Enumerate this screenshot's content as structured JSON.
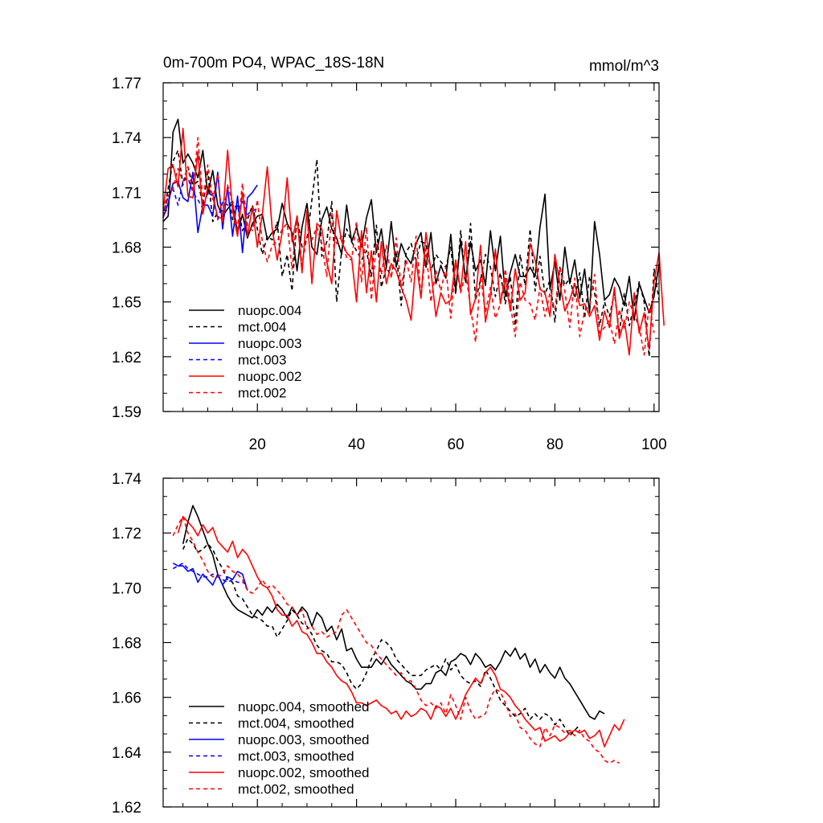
{
  "chart_data": [
    {
      "type": "line",
      "title": "0m-700m PO4, WPAC_18S-18N",
      "units": "mmol/m^3",
      "xlabel": "",
      "ylabel": "",
      "xlim": [
        1,
        101
      ],
      "ylim": [
        1.59,
        1.77
      ],
      "xticks": [
        20,
        40,
        60,
        80,
        100
      ],
      "yticks": [
        1.59,
        1.62,
        1.65,
        1.68,
        1.71,
        1.74,
        1.77
      ],
      "ytick_labels": [
        "1.59",
        "1.62",
        "1.65",
        "1.68",
        "1.71",
        "1.74",
        "1.77"
      ],
      "xtick_labels": [
        "20",
        "40",
        "60",
        "80",
        "100"
      ],
      "legend_position": "bottom-left",
      "series": [
        {
          "name": "nuopc.004",
          "color": "#000000",
          "dash": "solid",
          "x_start": 1,
          "values": [
            1.694,
            1.697,
            1.743,
            1.75,
            1.726,
            1.731,
            1.726,
            1.718,
            1.733,
            1.709,
            1.722,
            1.703,
            1.697,
            1.701,
            1.704,
            1.688,
            1.698,
            1.685,
            1.693,
            1.697,
            1.698,
            1.684,
            1.688,
            1.69,
            1.704,
            1.693,
            1.688,
            1.667,
            1.691,
            1.704,
            1.68,
            1.676,
            1.695,
            1.702,
            1.69,
            1.685,
            1.676,
            1.703,
            1.683,
            1.691,
            1.68,
            1.696,
            1.706,
            1.677,
            1.69,
            1.669,
            1.694,
            1.669,
            1.682,
            1.675,
            1.671,
            1.682,
            1.688,
            1.669,
            1.688,
            1.66,
            1.67,
            1.663,
            1.687,
            1.656,
            1.684,
            1.662,
            1.683,
            1.667,
            1.673,
            1.659,
            1.689,
            1.667,
            1.686,
            1.653,
            1.666,
            1.676,
            1.664,
            1.664,
            1.669,
            1.664,
            1.691,
            1.709,
            1.657,
            1.672,
            1.651,
            1.68,
            1.66,
            1.673,
            1.652,
            1.668,
            1.644,
            1.694,
            1.676,
            1.651,
            1.654,
            1.663,
            1.658,
            1.648,
            1.664,
            1.64,
            1.66,
            1.652,
            1.644,
            1.653,
            1.671
          ]
        },
        {
          "name": "mct.004",
          "color": "#000000",
          "dash": "dashed",
          "x_start": 1,
          "values": [
            1.696,
            1.712,
            1.727,
            1.733,
            1.714,
            1.724,
            1.714,
            1.716,
            1.703,
            1.721,
            1.694,
            1.699,
            1.7,
            1.711,
            1.695,
            1.703,
            1.689,
            1.695,
            1.703,
            1.69,
            1.676,
            1.686,
            1.684,
            1.694,
            1.664,
            1.676,
            1.656,
            1.697,
            1.68,
            1.684,
            1.706,
            1.728,
            1.675,
            1.683,
            1.705,
            1.65,
            1.678,
            1.69,
            1.683,
            1.678,
            1.673,
            1.678,
            1.664,
            1.692,
            1.658,
            1.669,
            1.664,
            1.678,
            1.648,
            1.677,
            1.682,
            1.673,
            1.683,
            1.682,
            1.667,
            1.676,
            1.672,
            1.669,
            1.68,
            1.654,
            1.689,
            1.66,
            1.693,
            1.651,
            1.662,
            1.676,
            1.669,
            1.653,
            1.666,
            1.649,
            1.664,
            1.637,
            1.676,
            1.659,
            1.69,
            1.656,
            1.675,
            1.654,
            1.662,
            1.639,
            1.669,
            1.659,
            1.663,
            1.652,
            1.666,
            1.641,
            1.664,
            1.655,
            1.637,
            1.65,
            1.642,
            1.655,
            1.633,
            1.655,
            1.637,
            1.648,
            1.661,
            1.65,
            1.62,
            1.668,
            1.651
          ]
        },
        {
          "name": "nuopc.003",
          "color": "#0000ff",
          "dash": "solid",
          "x_start": 1,
          "values": [
            1.696,
            1.704,
            1.715,
            1.716,
            1.707,
            1.705,
            1.721,
            1.688,
            1.703,
            1.703,
            1.697,
            1.721,
            1.69,
            1.713,
            1.686,
            1.708,
            1.677,
            1.707,
            1.71,
            1.714
          ]
        },
        {
          "name": "mct.003",
          "color": "#0000ff",
          "dash": "dashed",
          "x_start": 1,
          "values": [
            1.697,
            1.708,
            1.712,
            1.703,
            1.716,
            1.718,
            1.71,
            1.706,
            1.701,
            1.71,
            1.708,
            1.695,
            1.705,
            1.703,
            1.705,
            1.7,
            1.705,
            1.698,
            1.7,
            1.701
          ]
        },
        {
          "name": "nuopc.002",
          "color": "#ff0000",
          "dash": "solid",
          "x_start": 1,
          "values": [
            1.7,
            1.723,
            1.725,
            1.713,
            1.745,
            1.708,
            1.707,
            1.732,
            1.698,
            1.713,
            1.709,
            1.696,
            1.696,
            1.733,
            1.7,
            1.686,
            1.71,
            1.686,
            1.702,
            1.68,
            1.698,
            1.724,
            1.69,
            1.673,
            1.688,
            1.718,
            1.683,
            1.697,
            1.666,
            1.7,
            1.66,
            1.693,
            1.69,
            1.672,
            1.66,
            1.7,
            1.683,
            1.677,
            1.674,
            1.65,
            1.689,
            1.655,
            1.678,
            1.65,
            1.683,
            1.66,
            1.671,
            1.667,
            1.658,
            1.651,
            1.64,
            1.673,
            1.652,
            1.688,
            1.667,
            1.642,
            1.655,
            1.649,
            1.651,
            1.673,
            1.656,
            1.683,
            1.643,
            1.652,
            1.681,
            1.639,
            1.653,
            1.679,
            1.649,
            1.663,
            1.645,
            1.668,
            1.651,
            1.655,
            1.682,
            1.673,
            1.657,
            1.655,
            1.642,
            1.676,
            1.66,
            1.645,
            1.651,
            1.66,
            1.648,
            1.649,
            1.642,
            1.648,
            1.629,
            1.645,
            1.636,
            1.658,
            1.63,
            1.64,
            1.621,
            1.655,
            1.633,
            1.644,
            1.624,
            1.661,
            1.677,
            1.637
          ]
        },
        {
          "name": "mct.002",
          "color": "#ff0000",
          "dash": "dashed",
          "x_start": 1,
          "values": [
            1.696,
            1.708,
            1.712,
            1.723,
            1.716,
            1.724,
            1.71,
            1.74,
            1.705,
            1.725,
            1.706,
            1.72,
            1.693,
            1.714,
            1.704,
            1.69,
            1.715,
            1.692,
            1.689,
            1.706,
            1.683,
            1.672,
            1.681,
            1.683,
            1.69,
            1.693,
            1.668,
            1.697,
            1.67,
            1.686,
            1.684,
            1.691,
            1.682,
            1.664,
            1.699,
            1.682,
            1.686,
            1.674,
            1.673,
            1.694,
            1.661,
            1.691,
            1.651,
            1.682,
            1.665,
            1.681,
            1.663,
            1.685,
            1.658,
            1.673,
            1.661,
            1.686,
            1.653,
            1.679,
            1.65,
            1.667,
            1.656,
            1.669,
            1.641,
            1.671,
            1.655,
            1.666,
            1.647,
            1.628,
            1.664,
            1.644,
            1.658,
            1.641,
            1.649,
            1.668,
            1.649,
            1.631,
            1.661,
            1.651,
            1.649,
            1.64,
            1.658,
            1.642,
            1.655,
            1.646,
            1.669,
            1.656,
            1.636,
            1.663,
            1.631,
            1.645,
            1.648,
            1.665,
            1.633,
            1.636,
            1.64,
            1.627,
            1.646,
            1.635,
            1.65,
            1.643,
            1.636,
            1.621,
            1.649,
            1.633
          ]
        }
      ]
    },
    {
      "type": "line",
      "title": "",
      "xlabel": "",
      "ylabel": "",
      "xlim": [
        1,
        101
      ],
      "ylim": [
        1.62,
        1.74
      ],
      "xticks": [
        20,
        40,
        60,
        80,
        100
      ],
      "yticks": [
        1.62,
        1.64,
        1.66,
        1.68,
        1.7,
        1.72,
        1.74
      ],
      "ytick_labels": [
        "1.62",
        "1.64",
        "1.66",
        "1.68",
        "1.70",
        "1.72",
        "1.74"
      ],
      "legend_position": "bottom-left",
      "series": [
        {
          "name": "nuopc.004, smoothed",
          "color": "#000000",
          "dash": "solid",
          "x_start": 5,
          "values": [
            1.716,
            1.724,
            1.73,
            1.726,
            1.721,
            1.716,
            1.712,
            1.705,
            1.701,
            1.697,
            1.694,
            1.692,
            1.691,
            1.69,
            1.689,
            1.692,
            1.69,
            1.693,
            1.691,
            1.694,
            1.692,
            1.689,
            1.693,
            1.69,
            1.693,
            1.691,
            1.686,
            1.691,
            1.689,
            1.684,
            1.686,
            1.681,
            1.685,
            1.677,
            1.678,
            1.674,
            1.671,
            1.671,
            1.671,
            1.674,
            1.672,
            1.675,
            1.672,
            1.67,
            1.668,
            1.666,
            1.665,
            1.663,
            1.663,
            1.665,
            1.665,
            1.669,
            1.67,
            1.668,
            1.673,
            1.674,
            1.676,
            1.675,
            1.672,
            1.676,
            1.674,
            1.671,
            1.672,
            1.67,
            1.673,
            1.677,
            1.675,
            1.678,
            1.674,
            1.676,
            1.671,
            1.674,
            1.669,
            1.672,
            1.669,
            1.667,
            1.671,
            1.667,
            1.665,
            1.662,
            1.659,
            1.656,
            1.653,
            1.652,
            1.655,
            1.654
          ]
        },
        {
          "name": "mct.004, smoothed",
          "color": "#000000",
          "dash": "dashed",
          "x_start": 5,
          "values": [
            1.714,
            1.718,
            1.716,
            1.713,
            1.714,
            1.716,
            1.714,
            1.71,
            1.707,
            1.703,
            1.702,
            1.697,
            1.696,
            1.693,
            1.69,
            1.689,
            1.688,
            1.686,
            1.686,
            1.682,
            1.685,
            1.688,
            1.692,
            1.69,
            1.687,
            1.686,
            1.683,
            1.679,
            1.677,
            1.676,
            1.673,
            1.673,
            1.672,
            1.669,
            1.665,
            1.663,
            1.665,
            1.669,
            1.674,
            1.677,
            1.681,
            1.68,
            1.678,
            1.674,
            1.672,
            1.67,
            1.668,
            1.668,
            1.668,
            1.67,
            1.671,
            1.672,
            1.67,
            1.674,
            1.67,
            1.672,
            1.668,
            1.666,
            1.665,
            1.666,
            1.664,
            1.67,
            1.667,
            1.663,
            1.659,
            1.657,
            1.655,
            1.653,
            1.654,
            1.656,
            1.652,
            1.654,
            1.652,
            1.654,
            1.653,
            1.65,
            1.652,
            1.649,
            1.646,
            1.648,
            1.65
          ]
        },
        {
          "name": "nuopc.003, smoothed",
          "color": "#0000ff",
          "dash": "solid",
          "x_start": 3,
          "values": [
            1.709,
            1.708,
            1.708,
            1.706,
            1.707,
            1.702,
            1.705,
            1.703,
            1.701,
            1.705,
            1.701,
            1.704,
            1.703,
            1.706,
            1.705,
            1.699
          ]
        },
        {
          "name": "mct.003, smoothed",
          "color": "#0000ff",
          "dash": "dashed",
          "x_start": 3,
          "values": [
            1.707,
            1.708,
            1.709,
            1.707,
            1.706,
            1.705,
            1.704,
            1.704,
            1.705,
            1.704,
            1.703,
            1.702,
            1.703,
            1.702,
            1.702,
            1.701
          ]
        },
        {
          "name": "nuopc.002, smoothed",
          "color": "#ff0000",
          "dash": "solid",
          "x_start": 4,
          "values": [
            1.72,
            1.726,
            1.724,
            1.722,
            1.719,
            1.723,
            1.72,
            1.722,
            1.717,
            1.715,
            1.713,
            1.717,
            1.711,
            1.714,
            1.712,
            1.708,
            1.704,
            1.701,
            1.7,
            1.697,
            1.692,
            1.69,
            1.69,
            1.686,
            1.688,
            1.684,
            1.683,
            1.68,
            1.676,
            1.676,
            1.673,
            1.671,
            1.668,
            1.666,
            1.665,
            1.662,
            1.658,
            1.658,
            1.657,
            1.658,
            1.659,
            1.657,
            1.656,
            1.654,
            1.655,
            1.652,
            1.655,
            1.653,
            1.654,
            1.656,
            1.655,
            1.652,
            1.657,
            1.656,
            1.653,
            1.656,
            1.652,
            1.656,
            1.661,
            1.664,
            1.667,
            1.665,
            1.669,
            1.671,
            1.668,
            1.663,
            1.662,
            1.66,
            1.657,
            1.655,
            1.652,
            1.65,
            1.648,
            1.649,
            1.644,
            1.645,
            1.646,
            1.644,
            1.645,
            1.647,
            1.648,
            1.647,
            1.648,
            1.645,
            1.646,
            1.648,
            1.642,
            1.646,
            1.65,
            1.648,
            1.652
          ]
        },
        {
          "name": "mct.002, smoothed",
          "color": "#ff0000",
          "dash": "dashed",
          "x_start": 3,
          "values": [
            1.719,
            1.723,
            1.726,
            1.72,
            1.717,
            1.713,
            1.71,
            1.706,
            1.704,
            1.704,
            1.705,
            1.708,
            1.706,
            1.705,
            1.703,
            1.699,
            1.698,
            1.7,
            1.703,
            1.7,
            1.701,
            1.699,
            1.697,
            1.694,
            1.693,
            1.69,
            1.692,
            1.685,
            1.686,
            1.683,
            1.684,
            1.682,
            1.683,
            1.684,
            1.69,
            1.692,
            1.689,
            1.686,
            1.683,
            1.68,
            1.679,
            1.676,
            1.674,
            1.672,
            1.67,
            1.668,
            1.669,
            1.666,
            1.666,
            1.663,
            1.659,
            1.657,
            1.658,
            1.656,
            1.658,
            1.654,
            1.661,
            1.657,
            1.652,
            1.66,
            1.655,
            1.652,
            1.653,
            1.654,
            1.66,
            1.663,
            1.662,
            1.658,
            1.653,
            1.654,
            1.649,
            1.648,
            1.645,
            1.643,
            1.642,
            1.649,
            1.646,
            1.65,
            1.649,
            1.647,
            1.648,
            1.646,
            1.648,
            1.645,
            1.644,
            1.641,
            1.64,
            1.637,
            1.636,
            1.637,
            1.636
          ]
        }
      ]
    }
  ]
}
